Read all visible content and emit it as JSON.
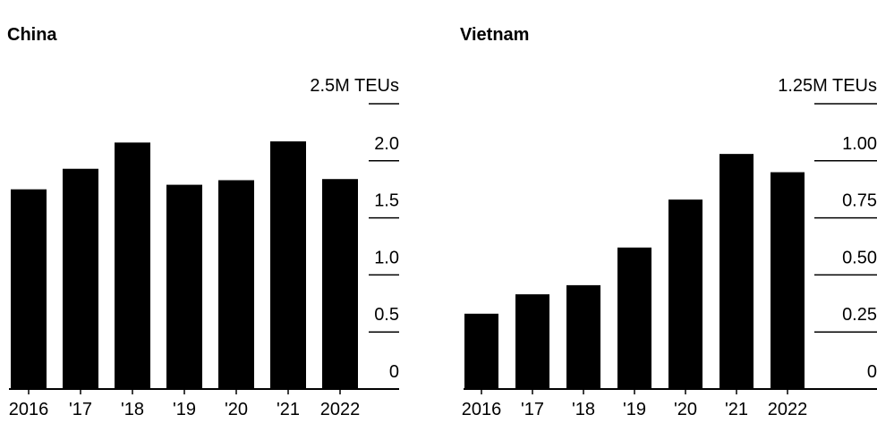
{
  "chart_data": [
    {
      "type": "bar",
      "title": "China",
      "unit_label": "2.5M TEUs",
      "categories": [
        "2016",
        "'17",
        "'18",
        "'19",
        "'20",
        "'21",
        "2022"
      ],
      "values": [
        1.75,
        1.93,
        2.16,
        1.79,
        1.83,
        2.17,
        1.84
      ],
      "yticks": [
        0,
        0.5,
        1.0,
        1.5,
        2.0
      ],
      "ytick_labels": [
        "0",
        "0.5",
        "1.0",
        "1.5",
        "2.0"
      ],
      "ylim": [
        0,
        2.5
      ],
      "xlabel": "",
      "ylabel": ""
    },
    {
      "type": "bar",
      "title": "Vietnam",
      "unit_label": "1.25M TEUs",
      "categories": [
        "2016",
        "'17",
        "'18",
        "'19",
        "'20",
        "'21",
        "2022"
      ],
      "values": [
        0.33,
        0.415,
        0.455,
        0.62,
        0.83,
        1.03,
        0.95
      ],
      "yticks": [
        0,
        0.25,
        0.5,
        0.75,
        1.0
      ],
      "ytick_labels": [
        "0",
        "0.25",
        "0.50",
        "0.75",
        "1.00"
      ],
      "ylim": [
        0,
        1.25
      ],
      "xlabel": "",
      "ylabel": ""
    }
  ]
}
